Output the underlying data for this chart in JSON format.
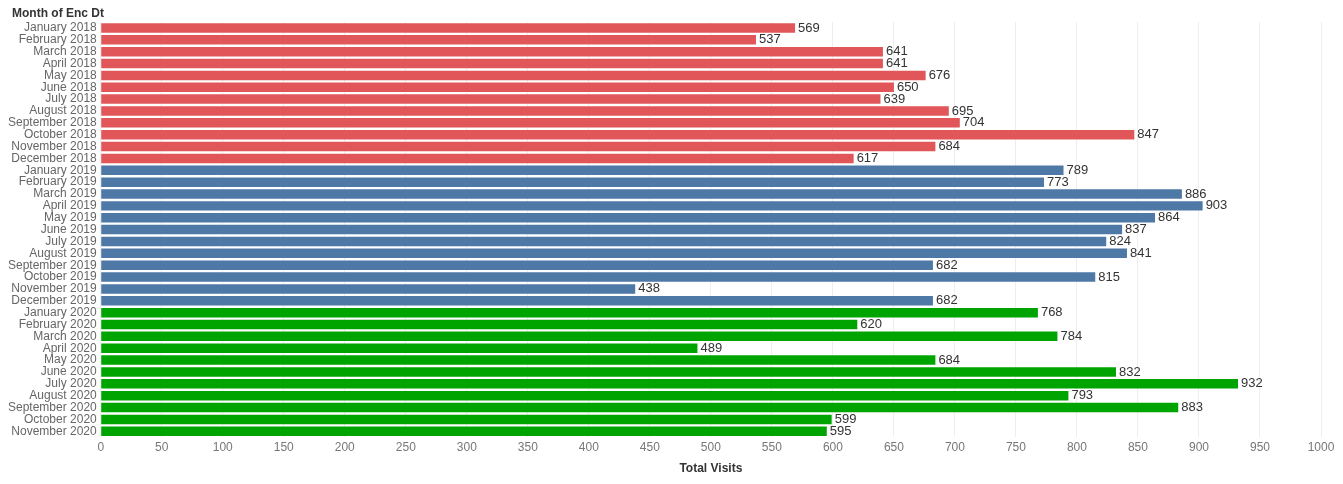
{
  "chart_data": {
    "type": "bar",
    "orientation": "horizontal",
    "ylabel": "Month of Enc Dt",
    "xlabel": "Total Visits",
    "categories": [
      "January 2018",
      "February 2018",
      "March 2018",
      "April 2018",
      "May 2018",
      "June 2018",
      "July 2018",
      "August 2018",
      "September 2018",
      "October 2018",
      "November 2018",
      "December 2018",
      "January 2019",
      "February 2019",
      "March 2019",
      "April 2019",
      "May 2019",
      "June 2019",
      "July 2019",
      "August 2019",
      "September 2019",
      "October 2019",
      "November 2019",
      "December 2019",
      "January 2020",
      "February 2020",
      "March 2020",
      "April 2020",
      "May 2020",
      "June 2020",
      "July 2020",
      "August 2020",
      "September 2020",
      "October 2020",
      "November 2020"
    ],
    "values": [
      569,
      537,
      641,
      641,
      676,
      650,
      639,
      695,
      704,
      847,
      684,
      617,
      789,
      773,
      886,
      903,
      864,
      837,
      824,
      841,
      682,
      815,
      438,
      682,
      768,
      620,
      784,
      489,
      684,
      832,
      932,
      793,
      883,
      599,
      595
    ],
    "colors": [
      "#e15759",
      "#e15759",
      "#e15759",
      "#e15759",
      "#e15759",
      "#e15759",
      "#e15759",
      "#e15759",
      "#e15759",
      "#e15759",
      "#e15759",
      "#e15759",
      "#4e79a7",
      "#4e79a7",
      "#4e79a7",
      "#4e79a7",
      "#4e79a7",
      "#4e79a7",
      "#4e79a7",
      "#4e79a7",
      "#4e79a7",
      "#4e79a7",
      "#4e79a7",
      "#4e79a7",
      "#00a400",
      "#00a400",
      "#00a400",
      "#00a400",
      "#00a400",
      "#00a400",
      "#00a400",
      "#00a400",
      "#00a400",
      "#00a400",
      "#00a400"
    ],
    "xlim": [
      0,
      1000
    ],
    "xticks": [
      0,
      50,
      100,
      150,
      200,
      250,
      300,
      350,
      400,
      450,
      500,
      550,
      600,
      650,
      700,
      750,
      800,
      850,
      900,
      950,
      1000
    ],
    "grid": "x",
    "legend": false,
    "data_labels": true
  }
}
